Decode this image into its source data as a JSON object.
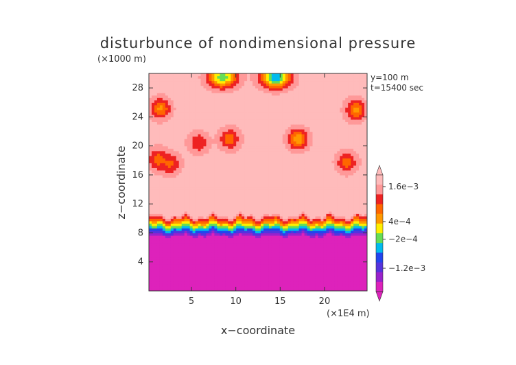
{
  "chart_data": {
    "type": "heatmap",
    "title": "disturbunce of nondimensional pressure",
    "yunit": "(×1000 m)",
    "xunit": "(×1E4 m)",
    "xlabel": "x−coordinate",
    "ylabel": "z−coordinate",
    "annotations": [
      "y=100  m",
      "t=15400 sec"
    ],
    "xlim": [
      0.2,
      24.8
    ],
    "ylim": [
      0,
      30
    ],
    "xticks": [
      5,
      10,
      15,
      20
    ],
    "xtick_labels": [
      "5",
      "10",
      "15",
      "20"
    ],
    "yticks": [
      4,
      8,
      12,
      16,
      20,
      24,
      28
    ],
    "ytick_labels": [
      "4",
      "8",
      "12",
      "16",
      "20",
      "24",
      "28"
    ],
    "grid": false,
    "colorbar": {
      "labels": [
        "1.6e−3",
        "4e−4",
        "−2e−4",
        "−1.2e−3"
      ],
      "label_values": [
        0.0016,
        0.0004,
        -0.0002,
        -0.0012
      ],
      "vmin": -0.002,
      "vmax": 0.002,
      "colors": [
        "#dd22bb",
        "#9922cc",
        "#5533dd",
        "#2244ee",
        "#00bbee",
        "#66dd55",
        "#ffee00",
        "#ff9900",
        "#ff6600",
        "#ee2222",
        "#ff9999",
        "#ffbbbb"
      ],
      "extends": "both"
    },
    "field_summary": {
      "lower_layer": {
        "z_range": [
          0,
          7.5
        ],
        "value": -0.0018
      },
      "transition_band_z": [
        7.5,
        10.5
      ],
      "upper_background_value": 0.0018,
      "blobs": [
        {
          "x": 1.5,
          "z": 25.2,
          "value": 0.0006
        },
        {
          "x": 23.5,
          "z": 25.0,
          "value": 0.0006
        },
        {
          "x": 17.0,
          "z": 21.0,
          "value": 0.0004
        },
        {
          "x": 5.8,
          "z": 20.5,
          "value": 0.001
        },
        {
          "x": 9.3,
          "z": 21.0,
          "value": 0.0008
        },
        {
          "x": 1.2,
          "z": 18.2,
          "value": 0.0008
        },
        {
          "x": 2.6,
          "z": 17.6,
          "value": 0.0009
        },
        {
          "x": 22.5,
          "z": 17.8,
          "value": 0.0008
        }
      ],
      "top_depressions": [
        {
          "x": 8.5,
          "z": 29.5,
          "value": -0.0002
        },
        {
          "x": 14.5,
          "z": 29.5,
          "value": -0.0006
        }
      ]
    }
  }
}
